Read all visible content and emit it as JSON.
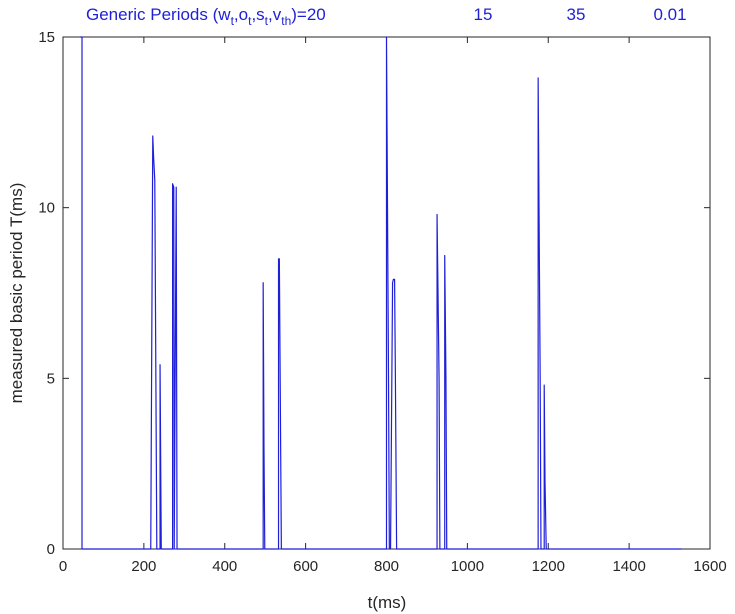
{
  "chart_data": {
    "type": "line",
    "title_parts": [
      {
        "text": "Generic Periods (w"
      },
      {
        "text": "t",
        "sub": true
      },
      {
        "text": ",o"
      },
      {
        "text": "t",
        "sub": true
      },
      {
        "text": ",s"
      },
      {
        "text": "t",
        "sub": true
      },
      {
        "text": ",v"
      },
      {
        "text": "th",
        "sub": true
      },
      {
        "text": ")=20"
      }
    ],
    "title_values": [
      "15",
      "35",
      "0.01"
    ],
    "xlabel": "t(ms)",
    "ylabel": "measured basic period T(ms)",
    "xlim": [
      0,
      1600
    ],
    "ylim": [
      0,
      15
    ],
    "xticks": [
      0,
      200,
      400,
      600,
      800,
      1000,
      1200,
      1400,
      1600
    ],
    "yticks": [
      0,
      5,
      10,
      15
    ],
    "grid": false,
    "line_color": "#1f1fd6",
    "series": [
      {
        "x": [
          42,
          47,
          47,
          217,
          217,
          222,
          224,
          227,
          232,
          232,
          240,
          240,
          243,
          246,
          246,
          271,
          271,
          274,
          275,
          275,
          280,
          282,
          282,
          285,
          287,
          287,
          495,
          495,
          497,
          499,
          499,
          533,
          533,
          535,
          540,
          540,
          800,
          800,
          805,
          807,
          810,
          815,
          815,
          817,
          820,
          822,
          825,
          825,
          925,
          925,
          930,
          932,
          932,
          944,
          944,
          947,
          949,
          949,
          1175,
          1175,
          1180,
          1182,
          1182,
          1190,
          1190,
          1192,
          1195,
          1195,
          1530
        ],
        "y": [
          15,
          15,
          0,
          0,
          0,
          12.1,
          11.5,
          10.8,
          0,
          0,
          0,
          5.4,
          0,
          0,
          0,
          0,
          10.7,
          10.6,
          0,
          0,
          10.6,
          0,
          0,
          0,
          0,
          0,
          0,
          7.8,
          3,
          0,
          0,
          0,
          8.5,
          8.5,
          0,
          0,
          0,
          15,
          5,
          0,
          0,
          7.8,
          7.8,
          7.9,
          7.9,
          5,
          0,
          0,
          0,
          9.8,
          5,
          0,
          0,
          0,
          8.6,
          5,
          0,
          0,
          0,
          13.8,
          5,
          0,
          0,
          0,
          4.8,
          2,
          0,
          0,
          0
        ]
      }
    ]
  }
}
